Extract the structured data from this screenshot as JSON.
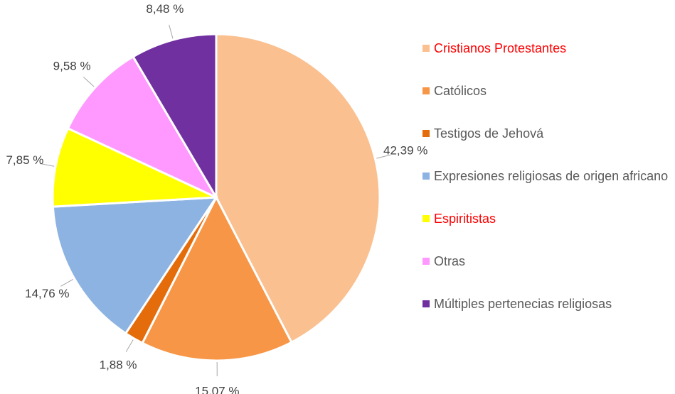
{
  "chart_data": {
    "type": "pie",
    "categories": [
      "Cristianos Protestantes",
      "Católicos",
      "Testigos de Jehová",
      "Expresiones religiosas de origen africano",
      "Espiritistas",
      "Otras",
      "Múltiples pertenecias religiosas"
    ],
    "values": [
      42.39,
      15.07,
      1.88,
      14.76,
      7.85,
      9.58,
      8.48
    ],
    "value_labels": [
      "42,39 %",
      "15,07 %",
      "1,88 %",
      "14,76 %",
      "7,85 %",
      "9,58 %",
      "8,48 %"
    ],
    "colors": [
      "#fac090",
      "#f79646",
      "#e46c0a",
      "#8db3e2",
      "#ffff00",
      "#ff99ff",
      "#7030a0"
    ],
    "legend_text_colors": [
      "#ff0000",
      "#595959",
      "#595959",
      "#595959",
      "#ff0000",
      "#595959",
      "#595959"
    ],
    "legend": "right"
  }
}
